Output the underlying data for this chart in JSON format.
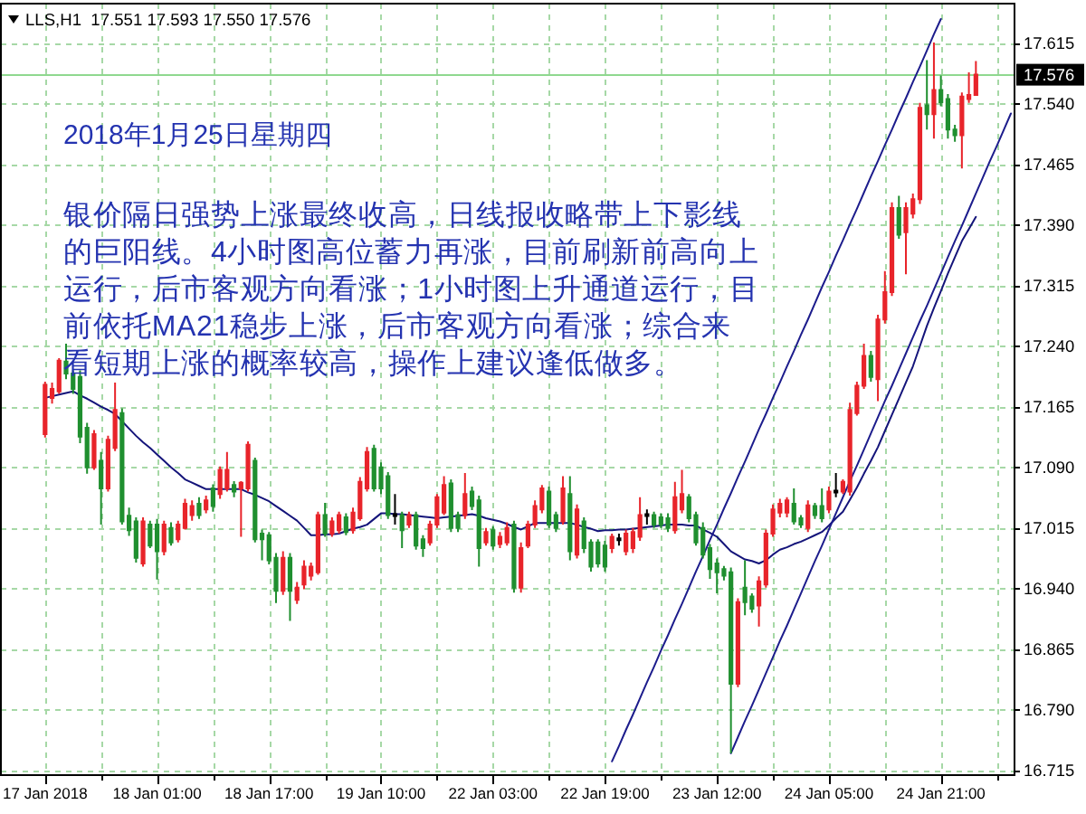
{
  "chart_data": {
    "type": "candlestick",
    "title": "LLS,H1  17.551 17.593 17.550 17.576",
    "annotations": [
      "2018年1月25日星期四",
      "银价隔日强势上涨最终收高，日线报收略带上下影线",
      "的巨阳线。4小时图高位蓄力再涨，目前刷新前高向上",
      "运行，后市客观方向看涨；1小时图上升通道运行，目",
      "前依托MA21稳步上涨，后市客观方向看涨；综合来",
      "看短期上涨的概率较高，操作上建议逢低做多。"
    ],
    "categories": [
      "17 Jan 2018",
      null,
      null,
      null,
      null,
      null,
      null,
      null,
      null,
      null,
      null,
      null,
      null,
      null,
      null,
      null,
      "18 Jan 01:00",
      null,
      null,
      null,
      null,
      null,
      null,
      null,
      null,
      null,
      null,
      null,
      null,
      null,
      null,
      null,
      "18 Jan 17:00",
      null,
      null,
      null,
      null,
      null,
      null,
      null,
      null,
      null,
      null,
      null,
      null,
      null,
      null,
      null,
      "19 Jan 10:00",
      null,
      null,
      null,
      null,
      null,
      null,
      null,
      null,
      null,
      null,
      null,
      null,
      null,
      null,
      null,
      "22 Jan 03:00",
      null,
      null,
      null,
      null,
      null,
      null,
      null,
      null,
      null,
      null,
      null,
      null,
      null,
      null,
      null,
      "22 Jan 19:00",
      null,
      null,
      null,
      null,
      null,
      null,
      null,
      null,
      null,
      null,
      null,
      null,
      null,
      null,
      null,
      "23 Jan 12:00",
      null,
      null,
      null,
      null,
      null,
      null,
      null,
      null,
      null,
      null,
      null,
      null,
      null,
      null,
      null,
      "24 Jan 05:00",
      null,
      null,
      null,
      null,
      null,
      null,
      null,
      null,
      null,
      null,
      null,
      null,
      null,
      null,
      null,
      "24 Jan 21:00",
      null,
      null,
      null,
      null,
      null,
      null,
      null,
      null,
      null,
      null
    ],
    "ohlc": [
      [
        17.131,
        17.196,
        17.127,
        17.192
      ],
      [
        17.176,
        17.195,
        17.169,
        17.187
      ],
      [
        17.184,
        17.225,
        17.181,
        17.222
      ],
      [
        17.221,
        17.243,
        17.199,
        17.206
      ],
      [
        17.206,
        17.21,
        17.181,
        17.187
      ],
      [
        17.202,
        17.21,
        17.12,
        17.128
      ],
      [
        17.139,
        17.145,
        17.082,
        17.09
      ],
      [
        17.09,
        17.136,
        17.087,
        17.131
      ],
      [
        17.098,
        17.109,
        17.019,
        17.064
      ],
      [
        17.064,
        17.129,
        17.06,
        17.124
      ],
      [
        17.114,
        17.195,
        17.11,
        17.161
      ],
      [
        17.157,
        17.163,
        17.019,
        17.023
      ],
      [
        17.03,
        17.04,
        17.005,
        17.012
      ],
      [
        17.023,
        17.028,
        16.972,
        16.978
      ],
      [
        16.971,
        17.028,
        16.967,
        17.023
      ],
      [
        17.019,
        17.024,
        16.99,
        16.993
      ],
      [
        17.019,
        17.026,
        16.951,
        16.986
      ],
      [
        16.986,
        17.024,
        16.981,
        17.019
      ],
      [
        17.015,
        17.022,
        16.993,
        16.997
      ],
      [
        17.001,
        17.024,
        16.997,
        17.019
      ],
      [
        17.015,
        17.051,
        17.013,
        17.045
      ],
      [
        17.031,
        17.049,
        17.024,
        17.042
      ],
      [
        17.045,
        17.053,
        17.026,
        17.031
      ],
      [
        17.038,
        17.055,
        17.033,
        17.049
      ],
      [
        17.064,
        17.069,
        17.035,
        17.042
      ],
      [
        17.057,
        17.091,
        17.051,
        17.087
      ],
      [
        17.064,
        17.109,
        17.06,
        17.087
      ],
      [
        17.068,
        17.073,
        17.053,
        17.06
      ],
      [
        17.064,
        17.073,
        17.004,
        17.071
      ],
      [
        17.064,
        17.122,
        17.06,
        17.118
      ],
      [
        17.098,
        17.102,
        16.997,
        17.001
      ],
      [
        17.008,
        17.013,
        16.975,
        17.001
      ],
      [
        17.006,
        17.01,
        16.97,
        16.975
      ],
      [
        16.978,
        16.984,
        16.922,
        16.937
      ],
      [
        16.937,
        16.986,
        16.932,
        16.978
      ],
      [
        16.978,
        16.984,
        16.9,
        16.937
      ],
      [
        16.926,
        16.948,
        16.921,
        16.941
      ],
      [
        16.945,
        16.975,
        16.939,
        16.967
      ],
      [
        16.956,
        16.972,
        16.95,
        16.967
      ],
      [
        16.96,
        17.035,
        16.957,
        17.031
      ],
      [
        17.031,
        17.046,
        17.004,
        17.008
      ],
      [
        17.008,
        17.028,
        17.004,
        17.023
      ],
      [
        17.012,
        17.035,
        17.008,
        17.031
      ],
      [
        17.028,
        17.033,
        17.006,
        17.01
      ],
      [
        17.012,
        17.04,
        17.008,
        17.034
      ],
      [
        17.027,
        17.078,
        17.024,
        17.072
      ],
      [
        17.064,
        17.115,
        17.06,
        17.109
      ],
      [
        17.113,
        17.118,
        17.06,
        17.064
      ],
      [
        17.09,
        17.096,
        17.057,
        17.064
      ],
      [
        17.079,
        17.084,
        17.026,
        17.031
      ],
      [
        17.031,
        17.057,
        17.019,
        17.031
      ],
      [
        17.031,
        17.035,
        16.99,
        17.012
      ],
      [
        17.019,
        17.035,
        17.015,
        17.031
      ],
      [
        17.031,
        17.035,
        16.988,
        16.993
      ],
      [
        17.001,
        17.006,
        16.979,
        16.99
      ],
      [
        16.997,
        17.024,
        16.993,
        17.019
      ],
      [
        17.019,
        17.057,
        17.015,
        17.053
      ],
      [
        17.034,
        17.079,
        17.031,
        17.068
      ],
      [
        17.07,
        17.075,
        17.01,
        17.015
      ],
      [
        17.031,
        17.035,
        17.01,
        17.015
      ],
      [
        17.031,
        17.083,
        17.026,
        17.057
      ],
      [
        17.06,
        17.066,
        17.037,
        17.042
      ],
      [
        17.049,
        17.055,
        16.967,
        16.99
      ],
      [
        16.997,
        17.015,
        16.993,
        17.01
      ],
      [
        17.012,
        17.017,
        16.988,
        16.993
      ],
      [
        16.995,
        17.01,
        16.99,
        17.004
      ],
      [
        16.997,
        17.022,
        16.993,
        17.015
      ],
      [
        17.019,
        17.024,
        16.935,
        16.941
      ],
      [
        16.941,
        16.997,
        16.935,
        16.99
      ],
      [
        16.993,
        17.024,
        16.99,
        17.019
      ],
      [
        17.019,
        17.049,
        17.015,
        17.042
      ],
      [
        17.038,
        17.068,
        17.033,
        17.064
      ],
      [
        17.06,
        17.066,
        17.015,
        17.019
      ],
      [
        17.031,
        17.035,
        17.01,
        17.015
      ],
      [
        17.023,
        17.079,
        17.019,
        17.064
      ],
      [
        17.057,
        17.079,
        16.975,
        16.986
      ],
      [
        16.982,
        17.044,
        16.977,
        17.038
      ],
      [
        17.023,
        17.028,
        16.984,
        16.99
      ],
      [
        16.997,
        17.001,
        16.961,
        16.967
      ],
      [
        16.997,
        17.001,
        16.966,
        16.971
      ],
      [
        16.993,
        16.999,
        16.961,
        16.967
      ],
      [
        16.99,
        17.008,
        16.984,
        17.004
      ],
      [
        17.001,
        17.008,
        16.993,
        17.001
      ],
      [
        16.986,
        17.013,
        16.981,
        17.008
      ],
      [
        16.99,
        17.015,
        16.984,
        17.01
      ],
      [
        17.004,
        17.053,
        16.999,
        17.031
      ],
      [
        17.031,
        17.038,
        17.019,
        17.031
      ],
      [
        17.031,
        17.035,
        17.015,
        17.019
      ],
      [
        17.028,
        17.033,
        17.015,
        17.019
      ],
      [
        17.027,
        17.033,
        17.01,
        17.015
      ],
      [
        17.012,
        17.072,
        17.008,
        17.053
      ],
      [
        17.038,
        17.087,
        17.033,
        17.057
      ],
      [
        17.053,
        17.057,
        17.022,
        17.027
      ],
      [
        17.031,
        17.035,
        16.993,
        16.997
      ],
      [
        17.015,
        17.022,
        16.977,
        16.982
      ],
      [
        16.99,
        16.995,
        16.952,
        16.964
      ],
      [
        16.971,
        16.977,
        16.934,
        16.96
      ],
      [
        16.964,
        16.968,
        16.95,
        16.956
      ],
      [
        16.96,
        16.966,
        16.736,
        16.822
      ],
      [
        16.822,
        16.928,
        16.818,
        16.923
      ],
      [
        16.941,
        16.975,
        16.907,
        16.923
      ],
      [
        16.93,
        16.934,
        16.91,
        16.915
      ],
      [
        16.919,
        16.955,
        16.893,
        16.949
      ],
      [
        16.945,
        17.013,
        16.941,
        17.008
      ],
      [
        17.008,
        17.044,
        17.004,
        17.038
      ],
      [
        17.034,
        17.051,
        17.028,
        17.045
      ],
      [
        17.034,
        17.053,
        17.028,
        17.049
      ],
      [
        17.045,
        17.064,
        17.019,
        17.023
      ],
      [
        17.027,
        17.031,
        17.015,
        17.019
      ],
      [
        17.015,
        17.049,
        17.01,
        17.043
      ],
      [
        17.042,
        17.046,
        17.026,
        17.031
      ],
      [
        17.042,
        17.064,
        17.022,
        17.027
      ],
      [
        17.038,
        17.066,
        17.033,
        17.06
      ],
      [
        17.06,
        17.083,
        17.053,
        17.06
      ],
      [
        17.06,
        17.075,
        17.057,
        17.072
      ],
      [
        17.06,
        17.17,
        17.055,
        17.161
      ],
      [
        17.157,
        17.196,
        17.154,
        17.191
      ],
      [
        17.191,
        17.243,
        17.187,
        17.228
      ],
      [
        17.228,
        17.234,
        17.196,
        17.202
      ],
      [
        17.199,
        17.279,
        17.172,
        17.273
      ],
      [
        17.273,
        17.333,
        17.268,
        17.307
      ],
      [
        17.307,
        17.418,
        17.302,
        17.411
      ],
      [
        17.411,
        17.426,
        17.373,
        17.378
      ],
      [
        17.381,
        17.418,
        17.329,
        17.411
      ],
      [
        17.404,
        17.429,
        17.398,
        17.422
      ],
      [
        17.422,
        17.541,
        17.416,
        17.535
      ],
      [
        17.538,
        17.594,
        17.508,
        17.527
      ],
      [
        17.527,
        17.616,
        17.497,
        17.557
      ],
      [
        17.557,
        17.575,
        17.537,
        17.542
      ],
      [
        17.546,
        17.552,
        17.497,
        17.508
      ],
      [
        17.508,
        17.514,
        17.493,
        17.501
      ],
      [
        17.501,
        17.554,
        17.46,
        17.549
      ],
      [
        17.546,
        17.579,
        17.541,
        17.551
      ],
      [
        17.551,
        17.593,
        17.55,
        17.576
      ],
      null,
      null,
      null,
      null,
      null
    ],
    "colors": [
      "#e8242a",
      "#e8242a",
      "#e8242a",
      "#1f8f2f",
      "#1f8f2f",
      "#1f8f2f",
      "#1f8f2f",
      "#e8242a",
      "#1f8f2f",
      "#e8242a",
      "#e8242a",
      "#1f8f2f",
      "#1f8f2f",
      "#1f8f2f",
      "#e8242a",
      "#1f8f2f",
      "#1f8f2f",
      "#e8242a",
      "#1f8f2f",
      "#e8242a",
      "#e8242a",
      "#e8242a",
      "#1f8f2f",
      "#e8242a",
      "#1f8f2f",
      "#e8242a",
      "#e8242a",
      "#1f8f2f",
      "#e8242a",
      "#e8242a",
      "#1f8f2f",
      "#1f8f2f",
      "#1f8f2f",
      "#1f8f2f",
      "#e8242a",
      "#1f8f2f",
      "#e8242a",
      "#e8242a",
      "#e8242a",
      "#e8242a",
      "#1f8f2f",
      "#e8242a",
      "#e8242a",
      "#1f8f2f",
      "#e8242a",
      "#e8242a",
      "#e8242a",
      "#1f8f2f",
      "#1f8f2f",
      "#1f8f2f",
      "#000000",
      "#1f8f2f",
      "#e8242a",
      "#1f8f2f",
      "#1f8f2f",
      "#e8242a",
      "#e8242a",
      "#e8242a",
      "#1f8f2f",
      "#1f8f2f",
      "#e8242a",
      "#1f8f2f",
      "#1f8f2f",
      "#e8242a",
      "#1f8f2f",
      "#e8242a",
      "#e8242a",
      "#1f8f2f",
      "#e8242a",
      "#e8242a",
      "#e8242a",
      "#e8242a",
      "#1f8f2f",
      "#1f8f2f",
      "#e8242a",
      "#1f8f2f",
      "#e8242a",
      "#1f8f2f",
      "#1f8f2f",
      "#1f8f2f",
      "#1f8f2f",
      "#e8242a",
      "#000000",
      "#e8242a",
      "#e8242a",
      "#e8242a",
      "#000000",
      "#1f8f2f",
      "#1f8f2f",
      "#1f8f2f",
      "#e8242a",
      "#e8242a",
      "#1f8f2f",
      "#1f8f2f",
      "#1f8f2f",
      "#1f8f2f",
      "#1f8f2f",
      "#1f8f2f",
      "#1f8f2f",
      "#e8242a",
      "#1f8f2f",
      "#1f8f2f",
      "#e8242a",
      "#e8242a",
      "#e8242a",
      "#e8242a",
      "#e8242a",
      "#1f8f2f",
      "#1f8f2f",
      "#e8242a",
      "#1f8f2f",
      "#1f8f2f",
      "#e8242a",
      "#000000",
      "#e8242a",
      "#e8242a",
      "#e8242a",
      "#e8242a",
      "#1f8f2f",
      "#e8242a",
      "#e8242a",
      "#e8242a",
      "#1f8f2f",
      "#e8242a",
      "#e8242a",
      "#e8242a",
      "#1f8f2f",
      "#e8242a",
      "#1f8f2f",
      "#1f8f2f",
      "#1f8f2f",
      "#e8242a",
      "#e8242a",
      "#e8242a",
      null,
      null,
      null,
      null,
      null
    ],
    "series": [
      {
        "type": "line",
        "color": "#14147a",
        "values": [
          17.176,
          17.178,
          17.18,
          17.182,
          17.184,
          17.179,
          17.175,
          17.17,
          17.165,
          17.161,
          17.156,
          17.147,
          17.138,
          17.129,
          17.121,
          17.114,
          17.106,
          17.098,
          17.09,
          17.083,
          17.075,
          17.071,
          17.067,
          17.063,
          17.063,
          17.063,
          17.063,
          17.063,
          17.063,
          17.059,
          17.056,
          17.052,
          17.048,
          17.042,
          17.036,
          17.03,
          17.024,
          17.015,
          17.006,
          17.006,
          17.007,
          17.007,
          17.008,
          17.011,
          17.014,
          17.016,
          17.019,
          17.026,
          17.033,
          17.033,
          17.032,
          17.032,
          17.031,
          17.03,
          17.029,
          17.028,
          17.027,
          17.028,
          17.029,
          17.03,
          17.031,
          17.032,
          17.03,
          17.027,
          17.025,
          17.023,
          17.02,
          17.016,
          17.013,
          17.017,
          17.021,
          17.021,
          17.021,
          17.021,
          17.021,
          17.021,
          17.019,
          17.016,
          17.014,
          17.011,
          17.012,
          17.012,
          17.013,
          17.013,
          17.014,
          17.015,
          17.016,
          17.017,
          17.018,
          17.019,
          17.019,
          17.019,
          17.018,
          17.018,
          17.013,
          17.009,
          17.004,
          16.995,
          16.986,
          16.981,
          16.976,
          16.974,
          16.971,
          16.975,
          16.982,
          16.988,
          16.991,
          16.995,
          16.998,
          17.002,
          17.006,
          17.01,
          17.018,
          17.027,
          17.035,
          17.05,
          17.065,
          17.082,
          17.098,
          17.115,
          17.135,
          17.155,
          17.175,
          17.195,
          17.215,
          17.24,
          17.265,
          17.287,
          17.308,
          17.33,
          17.35,
          17.37,
          17.385,
          17.4,
          null,
          null,
          null,
          null,
          null
        ]
      },
      {
        "type": "line",
        "color": "#1c1c8c",
        "values": [
          null,
          null,
          null,
          null,
          null,
          null,
          null,
          null,
          null,
          null,
          null,
          null,
          null,
          null,
          null,
          null,
          null,
          null,
          null,
          null,
          null,
          null,
          null,
          null,
          null,
          null,
          null,
          null,
          null,
          null,
          null,
          null,
          null,
          null,
          null,
          null,
          null,
          null,
          null,
          null,
          null,
          null,
          null,
          null,
          null,
          null,
          null,
          null,
          null,
          null,
          null,
          null,
          null,
          null,
          null,
          null,
          null,
          null,
          null,
          null,
          null,
          null,
          null,
          null,
          null,
          null,
          null,
          null,
          null,
          null,
          null,
          null,
          null,
          null,
          null,
          null,
          null,
          null,
          null,
          null,
          null,
          16.726,
          16.745,
          16.765,
          16.784,
          16.804,
          16.824,
          16.843,
          16.863,
          16.882,
          16.902,
          16.921,
          16.941,
          16.961,
          16.98,
          17.0,
          17.019,
          17.039,
          17.058,
          17.078,
          17.097,
          17.117,
          17.137,
          17.156,
          17.176,
          17.195,
          17.215,
          17.234,
          17.254,
          17.273,
          17.293,
          17.313,
          17.332,
          17.352,
          17.371,
          17.391,
          17.41,
          17.43,
          17.45,
          17.469,
          17.489,
          17.508,
          17.528,
          17.547,
          17.567,
          17.586,
          17.606,
          17.626,
          17.645,
          null,
          null,
          null,
          null,
          null,
          null,
          null,
          null,
          null,
          null
        ]
      },
      {
        "type": "line",
        "color": "#1c1c8c",
        "values": [
          null,
          null,
          null,
          null,
          null,
          null,
          null,
          null,
          null,
          null,
          null,
          null,
          null,
          null,
          null,
          null,
          null,
          null,
          null,
          null,
          null,
          null,
          null,
          null,
          null,
          null,
          null,
          null,
          null,
          null,
          null,
          null,
          null,
          null,
          null,
          null,
          null,
          null,
          null,
          null,
          null,
          null,
          null,
          null,
          null,
          null,
          null,
          null,
          null,
          null,
          null,
          null,
          null,
          null,
          null,
          null,
          null,
          null,
          null,
          null,
          null,
          null,
          null,
          null,
          null,
          null,
          null,
          null,
          null,
          null,
          null,
          null,
          null,
          null,
          null,
          null,
          null,
          null,
          null,
          null,
          null,
          null,
          null,
          null,
          null,
          null,
          null,
          null,
          null,
          null,
          null,
          null,
          null,
          null,
          null,
          null,
          null,
          null,
          16.736,
          16.756,
          16.776,
          16.795,
          16.815,
          16.835,
          16.855,
          16.875,
          16.894,
          16.914,
          16.934,
          16.954,
          16.974,
          16.993,
          17.013,
          17.033,
          17.053,
          17.073,
          17.092,
          17.112,
          17.132,
          17.152,
          17.172,
          17.191,
          17.211,
          17.231,
          17.251,
          17.271,
          17.29,
          17.31,
          17.33,
          17.35,
          17.37,
          17.389,
          17.409,
          17.429,
          17.449,
          17.469,
          17.488,
          17.508,
          17.528
        ]
      }
    ],
    "ref_lines": [
      {
        "axis": "y",
        "value": 17.576,
        "label": "17.576",
        "color": "#8fd88f"
      }
    ],
    "ylim": [
      16.709,
      17.664
    ],
    "yticks": [
      16.715,
      {
        "value": 16.79,
        "label": "16.790"
      },
      16.865,
      {
        "value": 16.94,
        "label": "16.940"
      },
      17.015,
      {
        "value": 17.09,
        "label": "17.090"
      },
      17.165,
      {
        "value": 17.24,
        "label": "17.240"
      },
      17.315,
      {
        "value": 17.39,
        "label": "17.390"
      },
      17.465,
      {
        "value": 17.54,
        "label": "17.540"
      },
      17.615
    ],
    "grid": true
  }
}
